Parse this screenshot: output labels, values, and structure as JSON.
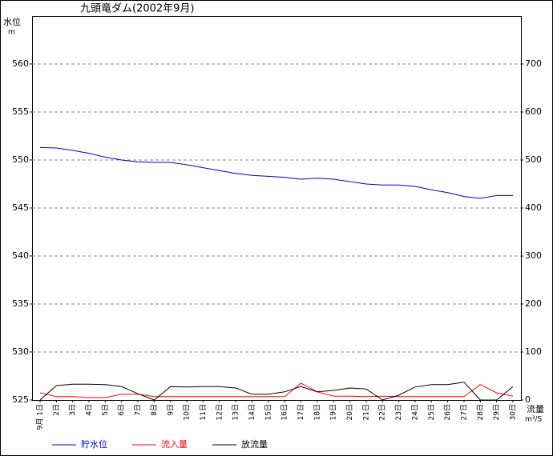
{
  "chart_data": {
    "type": "line",
    "title": "九頭竜ダム(2002年9月)",
    "y_label": "水位",
    "y_unit": "m",
    "y2_label": "流量",
    "y2_unit": "m³/S",
    "categories": [
      "9月 1日",
      "2日",
      "3日",
      "4日",
      "5日",
      "6日",
      "7日",
      "8日",
      "9日",
      "10日",
      "11日",
      "12日",
      "13日",
      "14日",
      "15日",
      "16日",
      "17日",
      "18日",
      "19日",
      "20日",
      "21日",
      "22日",
      "23日",
      "24日",
      "25日",
      "26日",
      "27日",
      "28日",
      "29日",
      "30日"
    ],
    "series": [
      {
        "name": "貯水位",
        "color": "#0000cc",
        "axis": "y",
        "values": [
          551.3,
          551.25,
          551.0,
          550.7,
          550.3,
          550.0,
          549.8,
          549.75,
          549.75,
          549.5,
          549.2,
          548.9,
          548.6,
          548.4,
          548.3,
          548.2,
          548.0,
          548.1,
          548.0,
          547.75,
          547.5,
          547.4,
          547.4,
          547.25,
          546.9,
          546.6,
          546.2,
          546.0,
          546.3,
          546.3
        ]
      },
      {
        "name": "流入量",
        "color": "#ff0000",
        "axis": "y2",
        "values": [
          15,
          7,
          7,
          5,
          5,
          12,
          12,
          7,
          7,
          7,
          7,
          7,
          7,
          7,
          7,
          7,
          35,
          17,
          8,
          8,
          7,
          8,
          7,
          7,
          7,
          7,
          7,
          32,
          15,
          8
        ]
      },
      {
        "name": "放流量",
        "color": "#000000",
        "axis": "y2",
        "values": [
          0,
          30,
          33,
          33,
          32,
          28,
          13,
          0,
          28,
          27,
          28,
          28,
          25,
          12,
          12,
          17,
          28,
          17,
          20,
          25,
          23,
          0,
          10,
          27,
          32,
          32,
          37,
          0,
          0,
          28
        ]
      }
    ],
    "ylim": [
      525,
      565
    ],
    "yticks": [
      525,
      530,
      535,
      540,
      545,
      550,
      555,
      560
    ],
    "y2lim": [
      0,
      800
    ],
    "y2ticks": [
      0,
      100,
      200,
      300,
      400,
      500,
      600,
      700
    ],
    "grid": true
  }
}
